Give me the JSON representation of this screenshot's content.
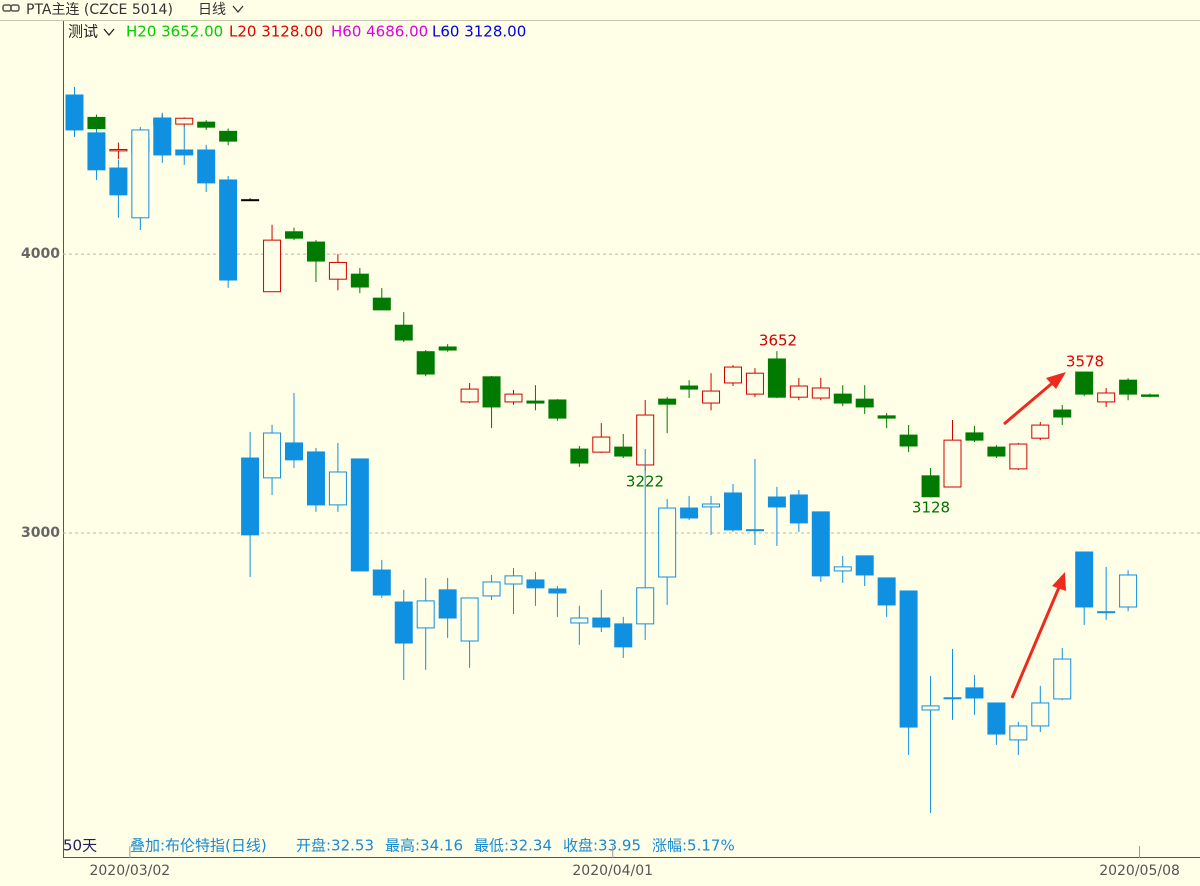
{
  "header": {
    "title": "PTA主连 (CZCE 5014)",
    "period": "日线",
    "indicator": "测试",
    "stats": [
      {
        "text": "H20 3652.00",
        "color": "#00cc00"
      },
      {
        "text": "L20 3128.00",
        "color": "#e00000"
      },
      {
        "text": "H60 4686.00",
        "color": "#e000e0"
      },
      {
        "text": "L60 3128.00",
        "color": "#0000e0"
      }
    ]
  },
  "footer": {
    "days": "50天",
    "overlay": "叠加:布伦特指(日线)",
    "stats": [
      "开盘:32.53",
      "最高:34.16",
      "最低:32.34",
      "收盘:33.95",
      "涨幅:5.17%"
    ]
  },
  "chart_data": {
    "type": "candlestick",
    "categories": [
      null,
      null,
      null,
      "2020/03/02",
      null,
      null,
      null,
      null,
      null,
      null,
      null,
      null,
      null,
      null,
      null,
      null,
      null,
      null,
      null,
      null,
      null,
      null,
      null,
      null,
      null,
      "2020/04/01",
      null,
      null,
      null,
      null,
      null,
      null,
      null,
      null,
      null,
      null,
      null,
      null,
      null,
      null,
      null,
      null,
      null,
      null,
      null,
      null,
      null,
      null,
      null,
      "2020/05/08"
    ],
    "ylim": [
      1835,
      4832
    ],
    "yticks": [
      3000,
      4000
    ],
    "grid": true,
    "y2lim": [
      21.39,
      58.49
    ],
    "annotations": [
      {
        "text": "3652",
        "color": "#d00000"
      },
      {
        "text": "3222",
        "color": "#007000"
      },
      {
        "text": "3128",
        "color": "#007000"
      },
      {
        "text": "3578",
        "color": "#e00000"
      }
    ],
    "series": [
      {
        "up_color": "#d00000",
        "down_color": "#007a00",
        "doji_color": "#000000",
        "hollow_up": true,
        "open": [
          4560,
          4490,
          4370,
          4365,
          4465,
          4466,
          4473,
          4440,
          4195,
          3865,
          4080,
          4043,
          3910,
          3928,
          3842,
          3745,
          3650,
          3667,
          3470,
          3560,
          3470,
          3473,
          3477,
          3301,
          3290,
          3308,
          3244,
          3480,
          3527,
          3466,
          3538,
          3498,
          3624,
          3487,
          3484,
          3498,
          3480,
          3420,
          3351,
          3205,
          3165,
          3359,
          3308,
          3230,
          3340,
          3441,
          3577,
          3470,
          3548,
          3495
        ],
        "high": [
          4580,
          4500,
          4400,
          4445,
          4500,
          4490,
          4480,
          4450,
          4200,
          4105,
          4095,
          4050,
          4000,
          3950,
          3878,
          3792,
          3656,
          3677,
          3538,
          3563,
          3513,
          3530,
          3480,
          3312,
          3394,
          3355,
          3477,
          3488,
          3548,
          3573,
          3602,
          3591,
          3652,
          3556,
          3556,
          3530,
          3530,
          3430,
          3387,
          3233,
          3405,
          3384,
          3315,
          3323,
          3398,
          3459,
          3578,
          3520,
          3555,
          3500
        ],
        "low": [
          4430,
          4445,
          4340,
          4335,
          4450,
          4455,
          4445,
          4390,
          4195,
          3865,
          4050,
          3900,
          3870,
          3860,
          3800,
          3685,
          3562,
          3650,
          3466,
          3376,
          3460,
          3440,
          3402,
          3237,
          3287,
          3269,
          3222,
          3358,
          3484,
          3440,
          3527,
          3487,
          3484,
          3476,
          3476,
          3455,
          3427,
          3376,
          3290,
          3128,
          3165,
          3326,
          3269,
          3226,
          3333,
          3387,
          3491,
          3452,
          3476,
          3487
        ],
        "close": [
          4450,
          4450,
          4375,
          4415,
          4485,
          4487,
          4455,
          4405,
          4195,
          4050,
          4057,
          3975,
          3970,
          3882,
          3800,
          3692,
          3570,
          3656,
          3516,
          3452,
          3498,
          3466,
          3412,
          3251,
          3344,
          3276,
          3423,
          3462,
          3516,
          3509,
          3595,
          3573,
          3487,
          3527,
          3520,
          3466,
          3452,
          3412,
          3312,
          3130,
          3333,
          3333,
          3276,
          3319,
          3387,
          3416,
          3498,
          3502,
          3498,
          3490
        ]
      },
      {
        "axis": "y2",
        "up_color": "#1090e0",
        "down_color": "#1090e0",
        "doji_color": "#1090e0",
        "hollow_up": true,
        "open": [
          55.25,
          53.57,
          52.01,
          49.8,
          54.23,
          52.81,
          52.81,
          51.48,
          39.14,
          38.26,
          39.81,
          39.41,
          37.06,
          39.1,
          34.17,
          32.75,
          31.6,
          33.29,
          31.02,
          33.02,
          33.55,
          33.73,
          33.33,
          31.82,
          32.04,
          31.78,
          31.78,
          33.86,
          36.92,
          36.97,
          37.59,
          35.96,
          37.41,
          37.5,
          36.75,
          34.13,
          34.8,
          33.82,
          33.24,
          27.96,
          28.49,
          28.94,
          28.27,
          26.63,
          27.25,
          28.45,
          34.97,
          32.31,
          32.53,
          null
        ],
        "high": [
          55.61,
          53.7,
          52.37,
          53.83,
          54.46,
          53.92,
          53.04,
          51.66,
          40.3,
          40.61,
          42.03,
          39.59,
          39.81,
          39.1,
          34.62,
          33.29,
          33.82,
          33.82,
          32.93,
          33.95,
          34.26,
          34.08,
          33.46,
          32.58,
          33.29,
          32.09,
          39.54,
          37.32,
          37.46,
          37.46,
          37.99,
          39.1,
          37.86,
          37.72,
          36.75,
          34.8,
          34.8,
          33.82,
          33.24,
          29.47,
          30.67,
          29.51,
          28.27,
          27.43,
          29.03,
          30.71,
          34.97,
          34.31,
          34.16,
          null
        ],
        "low": [
          53.39,
          51.48,
          49.8,
          49.26,
          52.24,
          52.15,
          50.95,
          46.69,
          33.86,
          37.5,
          38.7,
          36.75,
          36.75,
          34.13,
          32.93,
          29.29,
          29.74,
          31.16,
          29.83,
          32.84,
          32.22,
          32.58,
          32.09,
          30.85,
          31.42,
          30.27,
          31.07,
          32.62,
          36.39,
          35.73,
          35.86,
          35.28,
          35.24,
          35.86,
          33.64,
          33.6,
          33.46,
          32.09,
          25.96,
          23.39,
          27.52,
          27.74,
          26.41,
          25.96,
          26.98,
          28.4,
          31.73,
          31.96,
          32.34,
          null
        ],
        "close": [
          53.7,
          51.93,
          50.82,
          53.7,
          52.59,
          52.59,
          51.35,
          47.04,
          35.73,
          40.25,
          39.06,
          37.06,
          38.52,
          34.13,
          33.06,
          30.93,
          32.8,
          32.04,
          32.93,
          33.64,
          33.91,
          33.38,
          33.15,
          32.04,
          31.64,
          30.76,
          33.38,
          36.92,
          36.48,
          37.1,
          35.95,
          35.95,
          36.97,
          36.26,
          33.91,
          34.31,
          33.95,
          32.62,
          27.2,
          28.14,
          28.5,
          28.49,
          26.89,
          27.25,
          28.27,
          30.22,
          32.53,
          32.32,
          33.95,
          null
        ]
      }
    ]
  }
}
